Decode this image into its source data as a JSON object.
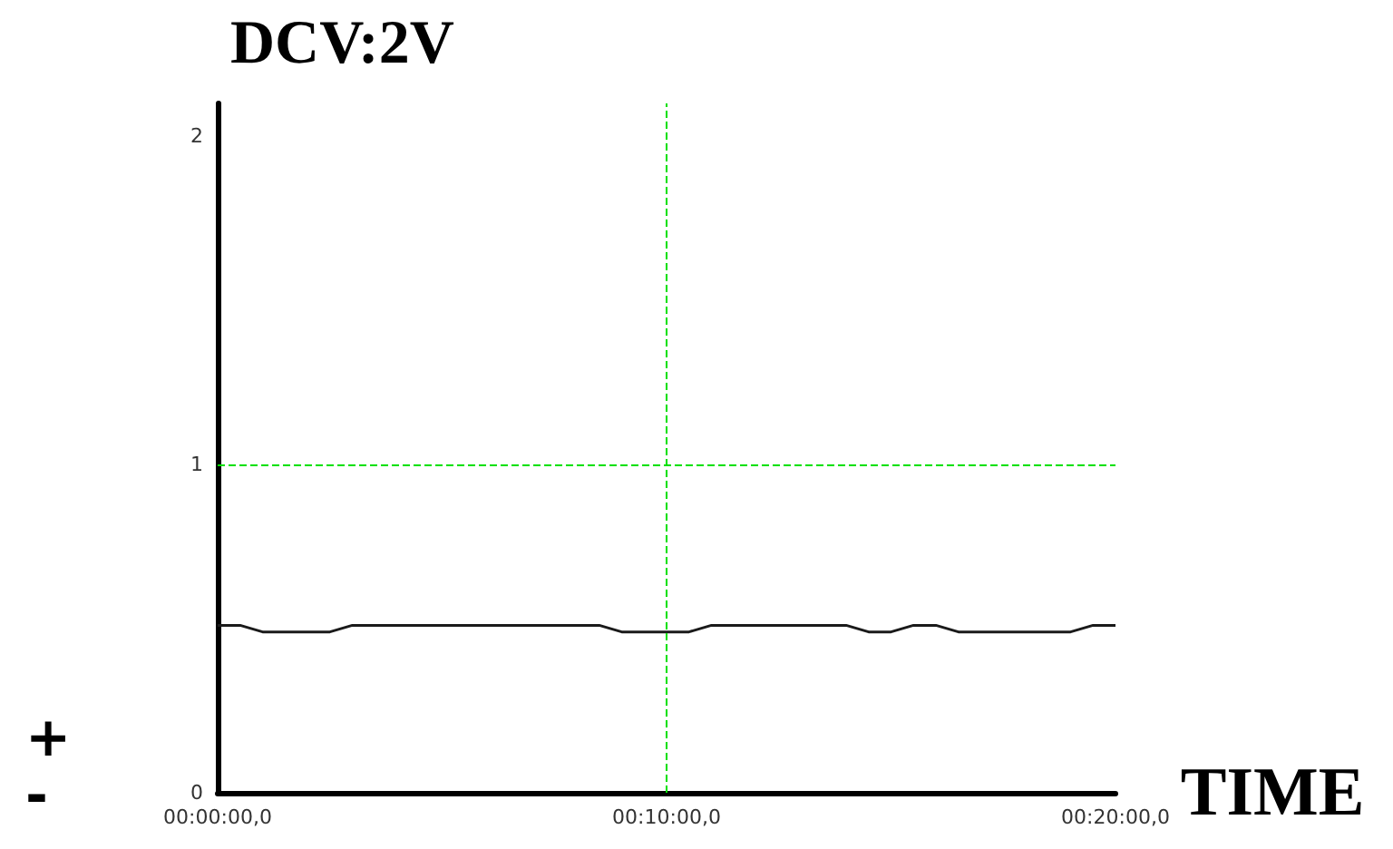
{
  "chart_data": {
    "type": "line",
    "title": "DCV:2V",
    "xlabel": "TIME",
    "annotations": [
      "+",
      "-"
    ],
    "categories": [
      "00:00:00,0",
      null,
      null,
      null,
      null,
      null,
      null,
      null,
      null,
      null,
      null,
      null,
      null,
      null,
      null,
      null,
      null,
      null,
      null,
      null,
      "00:10:00,0",
      null,
      null,
      null,
      null,
      null,
      null,
      null,
      null,
      null,
      null,
      null,
      null,
      null,
      null,
      null,
      null,
      null,
      null,
      null,
      "00:20:00,0"
    ],
    "series": [
      {
        "color": "#1a1a1a",
        "values": [
          0.51,
          0.51,
          0.49,
          0.49,
          0.49,
          0.49,
          0.51,
          0.51,
          0.51,
          0.51,
          0.51,
          0.51,
          0.51,
          0.51,
          0.51,
          0.51,
          0.51,
          0.51,
          0.49,
          0.49,
          0.49,
          0.49,
          0.51,
          0.51,
          0.51,
          0.51,
          0.51,
          0.51,
          0.51,
          0.49,
          0.49,
          0.51,
          0.51,
          0.49,
          0.49,
          0.49,
          0.49,
          0.49,
          0.49,
          0.51,
          0.51
        ]
      }
    ],
    "ylim": [
      0,
      2.1
    ],
    "yticks": [
      0,
      1,
      2
    ],
    "ref_lines": [
      {
        "axis": "y",
        "value": 1,
        "color": "#00e000",
        "line_style": "dashed"
      },
      {
        "axis": "x",
        "value": "00:10:00,0",
        "color": "#00e000",
        "line_style": "dashed"
      }
    ],
    "grid": false,
    "marker": "none",
    "line_style": "solid"
  }
}
